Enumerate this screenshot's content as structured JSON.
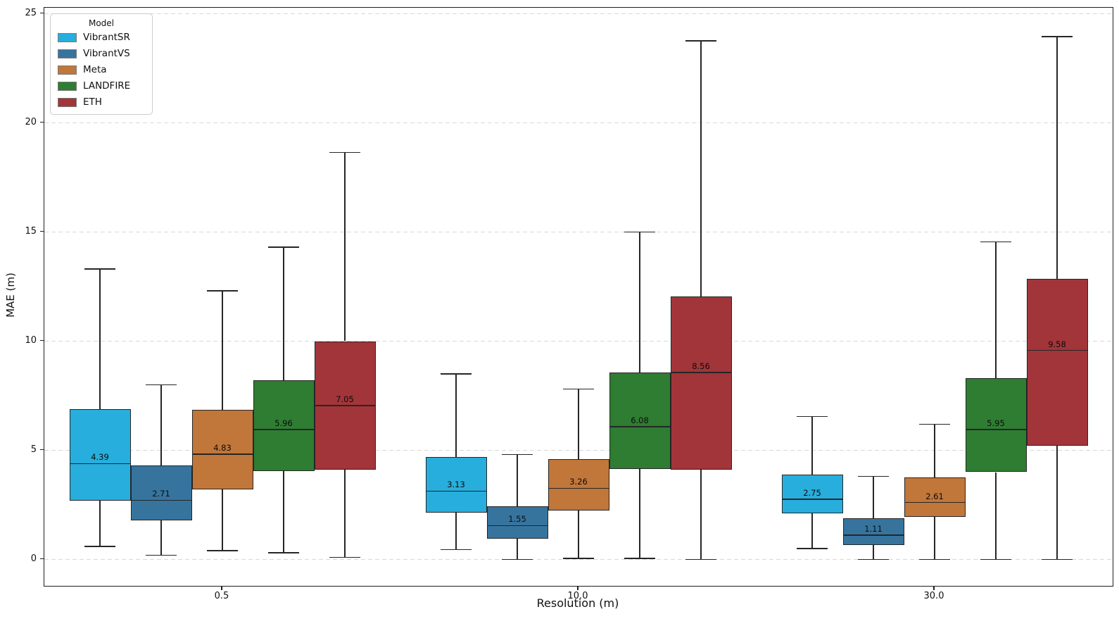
{
  "chart_data": {
    "type": "box",
    "title": "",
    "xlabel": "Resolution (m)",
    "ylabel": "MAE (m)",
    "categories": [
      "0.5",
      "10.0",
      "30.0"
    ],
    "y_ticks": [
      0,
      5,
      10,
      15,
      20,
      25
    ],
    "ylim": [
      -1.2,
      25.3
    ],
    "grid": "horizontal dashed",
    "legend": {
      "title": "Model",
      "position": "upper-left"
    },
    "colors": {
      "grid": "#d9d9d9",
      "box_edge": "#262626",
      "text": "#111111"
    },
    "series": [
      {
        "name": "VibrantSR",
        "color": "#27aedd",
        "boxes": [
          {
            "whisker_low": 0.6,
            "q1": 2.7,
            "median": 4.39,
            "q3": 6.9,
            "whisker_high": 13.3,
            "median_label": "4.39"
          },
          {
            "whisker_low": 0.45,
            "q1": 2.15,
            "median": 3.13,
            "q3": 4.7,
            "whisker_high": 8.5,
            "median_label": "3.13"
          },
          {
            "whisker_low": 0.5,
            "q1": 2.1,
            "median": 2.75,
            "q3": 3.9,
            "whisker_high": 6.55,
            "median_label": "2.75"
          }
        ]
      },
      {
        "name": "VibrantVS",
        "color": "#36749e",
        "boxes": [
          {
            "whisker_low": 0.2,
            "q1": 1.8,
            "median": 2.71,
            "q3": 4.3,
            "whisker_high": 8.0,
            "median_label": "2.71"
          },
          {
            "whisker_low": 0.0,
            "q1": 0.95,
            "median": 1.55,
            "q3": 2.45,
            "whisker_high": 4.8,
            "median_label": "1.55"
          },
          {
            "whisker_low": 0.0,
            "q1": 0.65,
            "median": 1.11,
            "q3": 1.9,
            "whisker_high": 3.8,
            "median_label": "1.11"
          }
        ]
      },
      {
        "name": "Meta",
        "color": "#c1763a",
        "boxes": [
          {
            "whisker_low": 0.4,
            "q1": 3.2,
            "median": 4.83,
            "q3": 6.85,
            "whisker_high": 12.3,
            "median_label": "4.83"
          },
          {
            "whisker_low": 0.05,
            "q1": 2.25,
            "median": 3.26,
            "q3": 4.6,
            "whisker_high": 7.8,
            "median_label": "3.26"
          },
          {
            "whisker_low": 0.0,
            "q1": 1.95,
            "median": 2.61,
            "q3": 3.75,
            "whisker_high": 6.2,
            "median_label": "2.61"
          }
        ]
      },
      {
        "name": "LANDFIRE",
        "color": "#2e7d32",
        "boxes": [
          {
            "whisker_low": 0.3,
            "q1": 4.05,
            "median": 5.96,
            "q3": 8.2,
            "whisker_high": 14.3,
            "median_label": "5.96"
          },
          {
            "whisker_low": 0.05,
            "q1": 4.15,
            "median": 6.08,
            "q3": 8.55,
            "whisker_high": 15.0,
            "median_label": "6.08"
          },
          {
            "whisker_low": 0.0,
            "q1": 4.0,
            "median": 5.95,
            "q3": 8.3,
            "whisker_high": 14.55,
            "median_label": "5.95"
          }
        ]
      },
      {
        "name": "ETH",
        "color": "#a23539",
        "boxes": [
          {
            "whisker_low": 0.1,
            "q1": 4.1,
            "median": 7.05,
            "q3": 10.0,
            "whisker_high": 18.65,
            "median_label": "7.05"
          },
          {
            "whisker_low": 0.0,
            "q1": 4.1,
            "median": 8.56,
            "q3": 12.05,
            "whisker_high": 23.75,
            "median_label": "8.56"
          },
          {
            "whisker_low": 0.0,
            "q1": 5.2,
            "median": 9.58,
            "q3": 12.85,
            "whisker_high": 23.95,
            "median_label": "9.58"
          }
        ]
      }
    ]
  }
}
